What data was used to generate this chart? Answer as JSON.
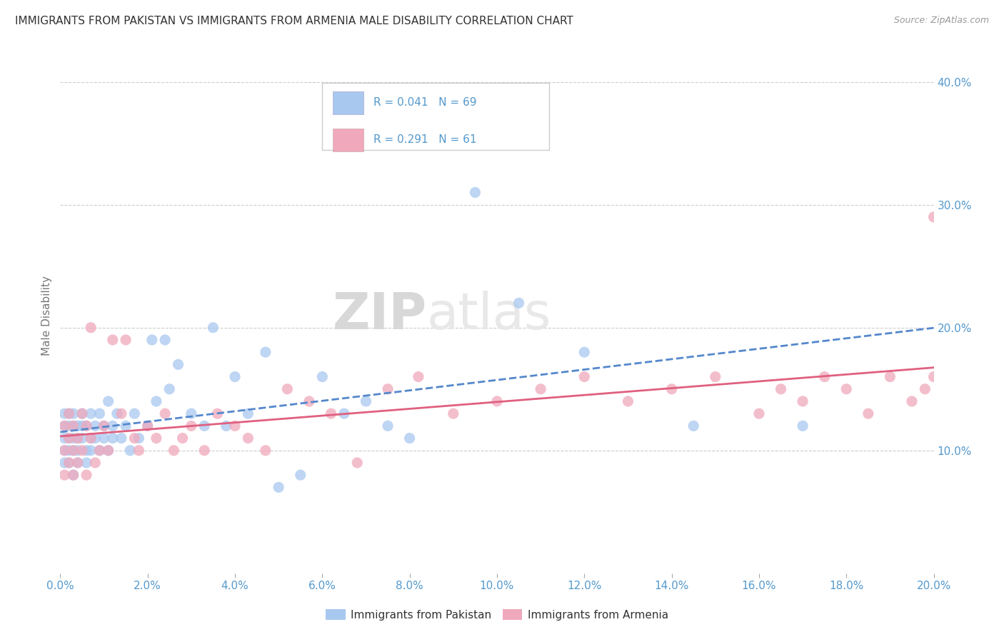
{
  "title": "IMMIGRANTS FROM PAKISTAN VS IMMIGRANTS FROM ARMENIA MALE DISABILITY CORRELATION CHART",
  "source": "Source: ZipAtlas.com",
  "ylabel": "Male Disability",
  "xlim": [
    0.0,
    0.2
  ],
  "ylim": [
    0.0,
    0.42
  ],
  "xticks": [
    0.0,
    0.02,
    0.04,
    0.06,
    0.08,
    0.1,
    0.12,
    0.14,
    0.16,
    0.18,
    0.2
  ],
  "yticks_right": [
    0.1,
    0.2,
    0.3,
    0.4
  ],
  "series1_label": "Immigrants from Pakistan",
  "series1_R": 0.041,
  "series1_N": 69,
  "series1_color": "#a8c8f0",
  "series1_line_color": "#5588cc",
  "series2_label": "Immigrants from Armenia",
  "series2_R": 0.291,
  "series2_N": 61,
  "series2_color": "#f0a8bc",
  "series2_line_color": "#e06080",
  "watermark_zip": "ZIP",
  "watermark_atlas": "atlas",
  "background_color": "#ffffff",
  "grid_color": "#cccccc",
  "title_color": "#333333",
  "axis_label_color": "#777777",
  "tick_label_color": "#5599cc",
  "legend_R_color": "#5599cc",
  "pakistan_x": [
    0.001,
    0.001,
    0.001,
    0.001,
    0.001,
    0.002,
    0.002,
    0.002,
    0.002,
    0.002,
    0.003,
    0.003,
    0.003,
    0.003,
    0.003,
    0.004,
    0.004,
    0.004,
    0.004,
    0.005,
    0.005,
    0.005,
    0.006,
    0.006,
    0.006,
    0.007,
    0.007,
    0.007,
    0.008,
    0.008,
    0.009,
    0.009,
    0.01,
    0.01,
    0.011,
    0.011,
    0.012,
    0.012,
    0.013,
    0.014,
    0.015,
    0.016,
    0.017,
    0.018,
    0.02,
    0.021,
    0.022,
    0.024,
    0.025,
    0.027,
    0.03,
    0.033,
    0.035,
    0.038,
    0.04,
    0.043,
    0.047,
    0.05,
    0.055,
    0.06,
    0.065,
    0.07,
    0.075,
    0.08,
    0.095,
    0.105,
    0.12,
    0.145,
    0.17
  ],
  "pakistan_y": [
    0.11,
    0.12,
    0.13,
    0.1,
    0.09,
    0.11,
    0.12,
    0.1,
    0.13,
    0.09,
    0.11,
    0.12,
    0.1,
    0.13,
    0.08,
    0.11,
    0.12,
    0.1,
    0.09,
    0.12,
    0.11,
    0.13,
    0.1,
    0.12,
    0.09,
    0.11,
    0.13,
    0.1,
    0.12,
    0.11,
    0.1,
    0.13,
    0.11,
    0.12,
    0.1,
    0.14,
    0.11,
    0.12,
    0.13,
    0.11,
    0.12,
    0.1,
    0.13,
    0.11,
    0.12,
    0.19,
    0.14,
    0.19,
    0.15,
    0.17,
    0.13,
    0.12,
    0.2,
    0.12,
    0.16,
    0.13,
    0.18,
    0.07,
    0.08,
    0.16,
    0.13,
    0.14,
    0.12,
    0.11,
    0.31,
    0.22,
    0.18,
    0.12,
    0.12
  ],
  "armenia_x": [
    0.001,
    0.001,
    0.001,
    0.002,
    0.002,
    0.002,
    0.003,
    0.003,
    0.003,
    0.004,
    0.004,
    0.005,
    0.005,
    0.006,
    0.006,
    0.007,
    0.007,
    0.008,
    0.009,
    0.01,
    0.011,
    0.012,
    0.014,
    0.015,
    0.017,
    0.018,
    0.02,
    0.022,
    0.024,
    0.026,
    0.028,
    0.03,
    0.033,
    0.036,
    0.04,
    0.043,
    0.047,
    0.052,
    0.057,
    0.062,
    0.068,
    0.075,
    0.082,
    0.09,
    0.1,
    0.11,
    0.12,
    0.13,
    0.14,
    0.15,
    0.16,
    0.165,
    0.17,
    0.175,
    0.18,
    0.185,
    0.19,
    0.195,
    0.198,
    0.2,
    0.2
  ],
  "armenia_y": [
    0.1,
    0.12,
    0.08,
    0.11,
    0.13,
    0.09,
    0.1,
    0.12,
    0.08,
    0.11,
    0.09,
    0.13,
    0.1,
    0.12,
    0.08,
    0.11,
    0.2,
    0.09,
    0.1,
    0.12,
    0.1,
    0.19,
    0.13,
    0.19,
    0.11,
    0.1,
    0.12,
    0.11,
    0.13,
    0.1,
    0.11,
    0.12,
    0.1,
    0.13,
    0.12,
    0.11,
    0.1,
    0.15,
    0.14,
    0.13,
    0.09,
    0.15,
    0.16,
    0.13,
    0.14,
    0.15,
    0.16,
    0.14,
    0.15,
    0.16,
    0.13,
    0.15,
    0.14,
    0.16,
    0.15,
    0.13,
    0.16,
    0.14,
    0.15,
    0.16,
    0.29
  ]
}
